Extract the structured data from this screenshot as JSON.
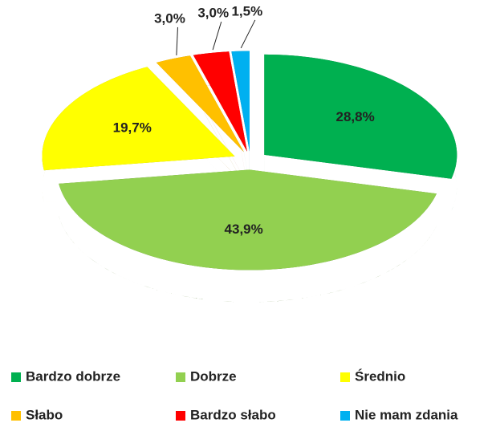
{
  "chart_data": {
    "type": "pie3d",
    "categories": [
      "Bardzo dobrze",
      "Dobrze",
      "Średnio",
      "Słabo",
      "Bardzo słabo",
      "Nie mam zdania"
    ],
    "values": [
      28.8,
      43.9,
      19.7,
      3.0,
      3.0,
      1.5
    ],
    "value_labels": [
      "28,8%",
      "43,9%",
      "19,7%",
      "3,0%",
      "3,0%",
      "1,5%"
    ],
    "colors": [
      "#00b050",
      "#92d050",
      "#ffff00",
      "#ffc000",
      "#ff0000",
      "#00b0f0"
    ],
    "legend": "bottom"
  }
}
